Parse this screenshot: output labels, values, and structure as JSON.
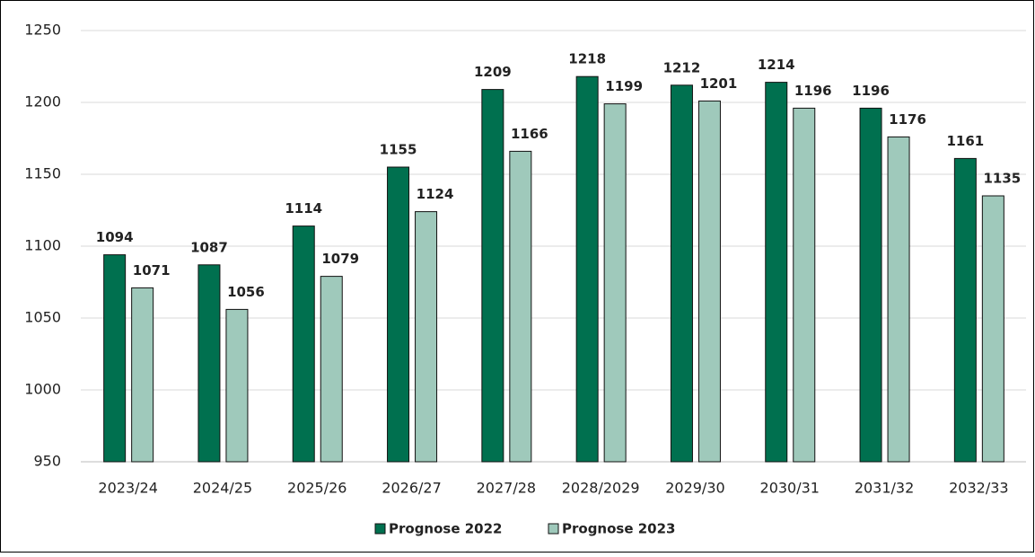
{
  "chart_data": {
    "type": "bar",
    "categories": [
      "2023/24",
      "2024/25",
      "2025/26",
      "2026/27",
      "2027/28",
      "2028/2029",
      "2029/30",
      "2030/31",
      "2031/32",
      "2032/33"
    ],
    "series": [
      {
        "name": "Prognose 2022",
        "color": "#00704f",
        "values": [
          1094,
          1087,
          1114,
          1155,
          1209,
          1218,
          1212,
          1214,
          1196,
          1161
        ]
      },
      {
        "name": "Prognose 2023",
        "color": "#9fc9bb",
        "values": [
          1071,
          1056,
          1079,
          1124,
          1166,
          1199,
          1201,
          1196,
          1176,
          1135
        ]
      }
    ],
    "ylim": [
      950,
      1250
    ],
    "yticks": [
      950,
      1000,
      1050,
      1100,
      1150,
      1200,
      1250
    ],
    "grid": true,
    "legend": "bottom"
  }
}
